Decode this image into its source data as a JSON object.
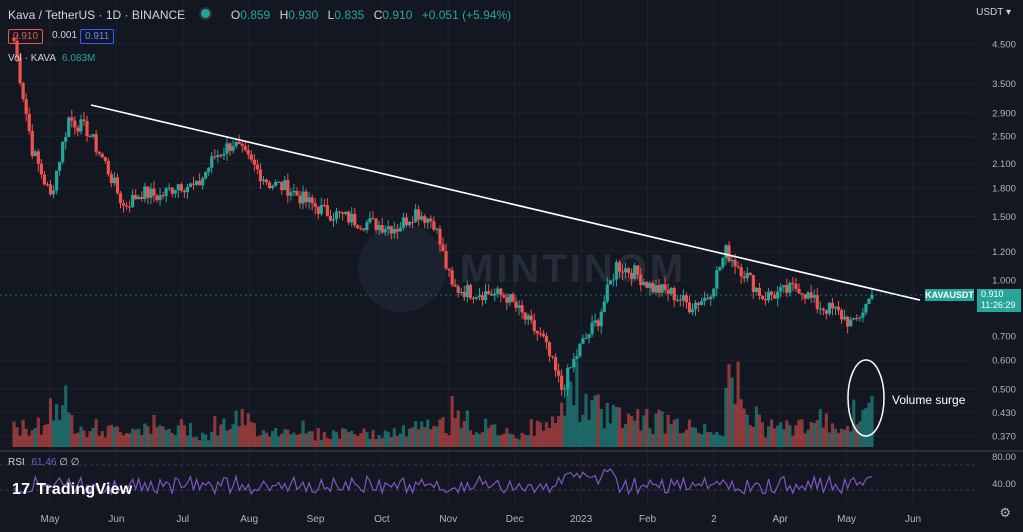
{
  "header": {
    "symbol": "Kava / TetherUS · 1D · BINANCE",
    "o_label": "O",
    "o": "0.859",
    "h_label": "H",
    "h": "0.930",
    "l_label": "L",
    "l": "0.835",
    "c_label": "C",
    "c": "0.910",
    "change": "+0.051 (+5.94%)"
  },
  "price_boxes": {
    "bid": "0.910",
    "spread": "0.001",
    "ask": "0.911"
  },
  "volume_legend": {
    "label": "Vol · KAVA",
    "value": "6.083M"
  },
  "currency": "USDT",
  "rsi_legend": {
    "label": "RSI",
    "value": "61.46",
    "extra": "∅ ∅"
  },
  "branding": "TradingView",
  "watermark": "MINTINOM",
  "annotation": "Volume surge",
  "last_price": {
    "tag": "KAVAUSDT",
    "price": "0.910",
    "countdown": "11:26:29"
  },
  "colors": {
    "up": "#26a69a",
    "down": "#ef5350",
    "rsi": "#7e57c2",
    "bg": "#131722",
    "trendline": "#ffffff"
  },
  "chart_data": {
    "type": "candlestick",
    "y_scale": "log",
    "y_ticks": [
      "4.500",
      "3.500",
      "2.900",
      "2.500",
      "2.100",
      "1.800",
      "1.500",
      "1.200",
      "1.000",
      "0.700",
      "0.600",
      "0.500",
      "0.430",
      "0.370"
    ],
    "x_ticks": [
      "May",
      "Jun",
      "Jul",
      "Aug",
      "Sep",
      "Oct",
      "Nov",
      "Dec",
      "2023",
      "Feb",
      "2",
      "Apr",
      "May",
      "Jun"
    ],
    "close_series": [
      {
        "t": "May",
        "v": 4.6
      },
      {
        "t": "May",
        "v": 2.3
      },
      {
        "t": "May",
        "v": 1.7
      },
      {
        "t": "Jun",
        "v": 2.8
      },
      {
        "t": "Jun",
        "v": 2.6
      },
      {
        "t": "Jun",
        "v": 2.1
      },
      {
        "t": "Jun",
        "v": 1.6
      },
      {
        "t": "Jul",
        "v": 1.75
      },
      {
        "t": "Jul",
        "v": 1.7
      },
      {
        "t": "Jul",
        "v": 1.85
      },
      {
        "t": "Jul",
        "v": 1.8
      },
      {
        "t": "Aug",
        "v": 2.2
      },
      {
        "t": "Aug",
        "v": 2.4
      },
      {
        "t": "Aug",
        "v": 2.1
      },
      {
        "t": "Aug",
        "v": 1.85
      },
      {
        "t": "Sep",
        "v": 1.8
      },
      {
        "t": "Sep",
        "v": 1.65
      },
      {
        "t": "Sep",
        "v": 1.55
      },
      {
        "t": "Oct",
        "v": 1.5
      },
      {
        "t": "Oct",
        "v": 1.45
      },
      {
        "t": "Oct",
        "v": 1.42
      },
      {
        "t": "Oct",
        "v": 1.4
      },
      {
        "t": "Nov",
        "v": 1.55
      },
      {
        "t": "Nov",
        "v": 1.45
      },
      {
        "t": "Nov",
        "v": 0.95
      },
      {
        "t": "Nov",
        "v": 0.93
      },
      {
        "t": "Dec",
        "v": 0.92
      },
      {
        "t": "Dec",
        "v": 0.9
      },
      {
        "t": "Dec",
        "v": 0.78
      },
      {
        "t": "Dec",
        "v": 0.68
      },
      {
        "t": "2023",
        "v": 0.5
      },
      {
        "t": "2023",
        "v": 0.65
      },
      {
        "t": "2023",
        "v": 0.78
      },
      {
        "t": "Feb",
        "v": 1.1
      },
      {
        "t": "Feb",
        "v": 1.05
      },
      {
        "t": "Feb",
        "v": 0.95
      },
      {
        "t": "Feb",
        "v": 0.92
      },
      {
        "t": "2",
        "v": 0.85
      },
      {
        "t": "2",
        "v": 0.9
      },
      {
        "t": "2",
        "v": 1.2
      },
      {
        "t": "2",
        "v": 1.05
      },
      {
        "t": "Apr",
        "v": 0.9
      },
      {
        "t": "Apr",
        "v": 0.92
      },
      {
        "t": "Apr",
        "v": 0.96
      },
      {
        "t": "May",
        "v": 0.85
      },
      {
        "t": "May",
        "v": 0.82
      },
      {
        "t": "May",
        "v": 0.75
      },
      {
        "t": "May",
        "v": 0.91
      }
    ],
    "volume_relative": [
      0.3,
      0.35,
      0.7,
      0.4,
      0.3,
      0.25,
      0.3,
      0.35,
      0.25,
      0.3,
      0.2,
      0.35,
      0.4,
      0.3,
      0.25,
      0.3,
      0.2,
      0.2,
      0.25,
      0.2,
      0.2,
      0.25,
      0.3,
      0.35,
      0.55,
      0.3,
      0.25,
      0.2,
      0.3,
      0.35,
      0.95,
      0.6,
      0.55,
      0.5,
      0.45,
      0.4,
      0.35,
      0.3,
      0.3,
      0.9,
      0.5,
      0.3,
      0.3,
      0.35,
      0.4,
      0.35,
      0.5,
      0.75
    ],
    "rsi": {
      "last": 61.46,
      "scale": [
        "80.00",
        "40.00"
      ]
    },
    "trendline": [
      {
        "t": "May",
        "v": 3.05
      },
      {
        "t": "Jun",
        "v": 0.88
      }
    ]
  }
}
